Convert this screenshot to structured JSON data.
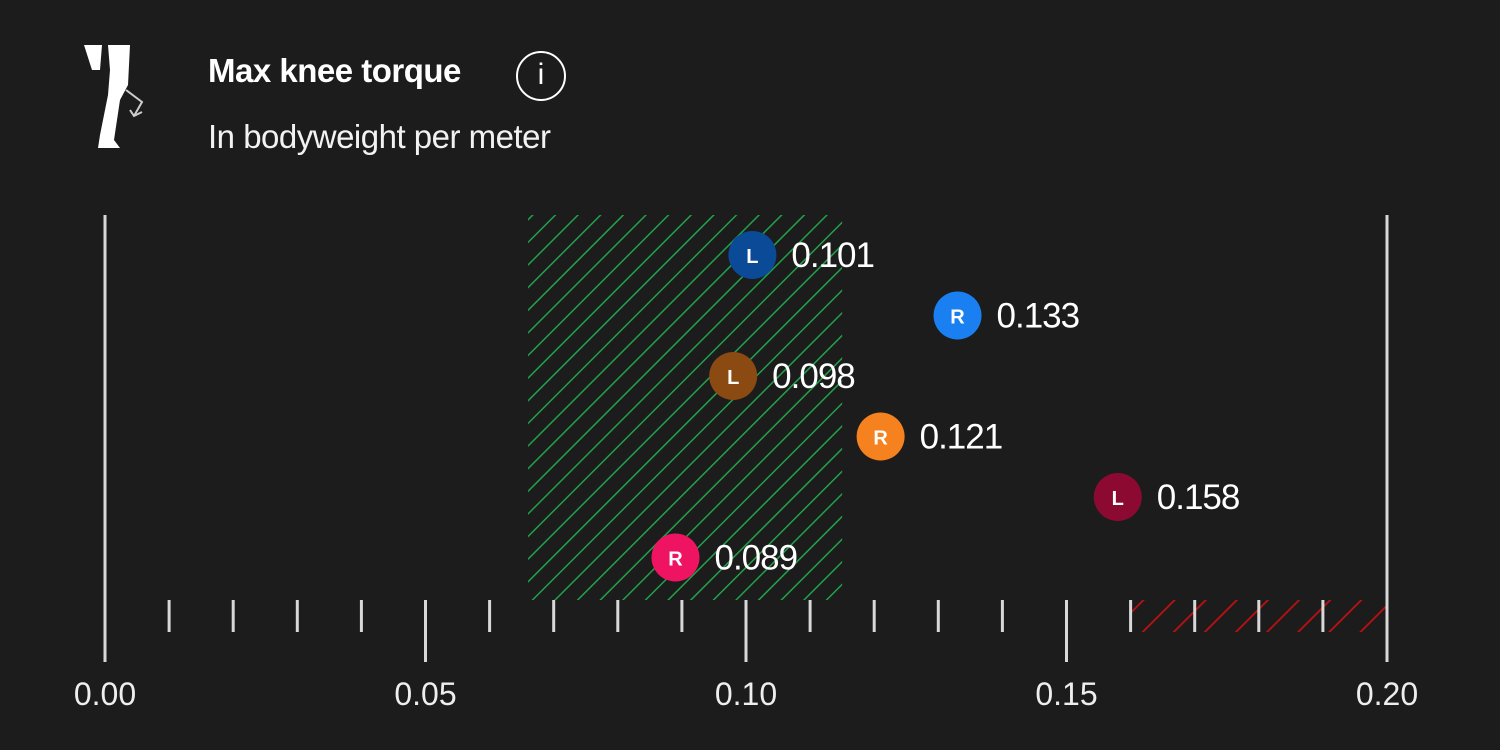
{
  "header": {
    "title": "Max knee torque",
    "subtitle": "In bodyweight per meter",
    "info_icon": "info-icon",
    "leg_icon": "knee-leg-icon"
  },
  "chart_data": {
    "type": "scatter",
    "title": "Max knee torque",
    "subtitle": "In bodyweight per meter",
    "xlim": [
      0,
      0.2
    ],
    "x_ticks": [
      "0.00",
      "0.05",
      "0.10",
      "0.15",
      "0.20"
    ],
    "minor_tick_step": 0.01,
    "target_range": {
      "from": 0.066,
      "to": 0.115,
      "color": "#22a04a"
    },
    "risk_range": {
      "from": 0.16,
      "to": 0.2,
      "color": "#c01010"
    },
    "points": [
      {
        "side": "L",
        "value": 0.101,
        "label": "0.101",
        "color": "#0b4a96"
      },
      {
        "side": "R",
        "value": 0.133,
        "label": "0.133",
        "color": "#1a80f2"
      },
      {
        "side": "L",
        "value": 0.098,
        "label": "0.098",
        "color": "#8a4a12"
      },
      {
        "side": "R",
        "value": 0.121,
        "label": "0.121",
        "color": "#f5821f"
      },
      {
        "side": "L",
        "value": 0.158,
        "label": "0.158",
        "color": "#8c0a32"
      },
      {
        "side": "R",
        "value": 0.089,
        "label": "0.089",
        "color": "#ef1462"
      }
    ]
  }
}
